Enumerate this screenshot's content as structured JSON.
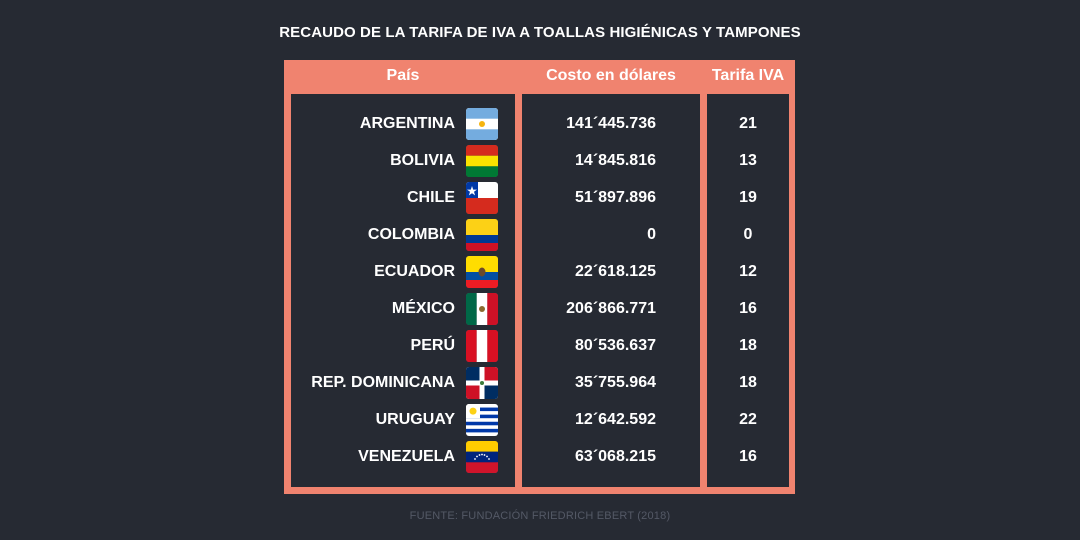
{
  "title": "RECAUDO DE LA TARIFA DE IVA A TOALLAS HIGIÉNICAS Y TAMPONES",
  "headers": {
    "country": "País",
    "cost": "Costo en dólares",
    "rate": "Tarifa IVA"
  },
  "rows": [
    {
      "country": "ARGENTINA",
      "flag": "argentina-flag-icon",
      "cost": "141´445.736",
      "rate": "21"
    },
    {
      "country": "BOLIVIA",
      "flag": "bolivia-flag-icon",
      "cost": "14´845.816",
      "rate": "13"
    },
    {
      "country": "CHILE",
      "flag": "chile-flag-icon",
      "cost": "51´897.896",
      "rate": "19"
    },
    {
      "country": "COLOMBIA",
      "flag": "colombia-flag-icon",
      "cost": "0",
      "rate": "0"
    },
    {
      "country": "ECUADOR",
      "flag": "ecuador-flag-icon",
      "cost": "22´618.125",
      "rate": "12"
    },
    {
      "country": "MÉXICO",
      "flag": "mexico-flag-icon",
      "cost": "206´866.771",
      "rate": "16"
    },
    {
      "country": "PERÚ",
      "flag": "peru-flag-icon",
      "cost": "80´536.637",
      "rate": "18"
    },
    {
      "country": "REP. DOMINICANA",
      "flag": "dominican-republic-flag-icon",
      "cost": "35´755.964",
      "rate": "18"
    },
    {
      "country": "URUGUAY",
      "flag": "uruguay-flag-icon",
      "cost": "12´642.592",
      "rate": "22"
    },
    {
      "country": "VENEZUELA",
      "flag": "venezuela-flag-icon",
      "cost": "63´068.215",
      "rate": "16"
    }
  ],
  "source": "FUENTE: FUNDACIÓN FRIEDRICH EBERT (2018)",
  "colors": {
    "background": "#262a33",
    "accent": "#f0836f",
    "text": "#ffffff",
    "source": "#545966"
  }
}
